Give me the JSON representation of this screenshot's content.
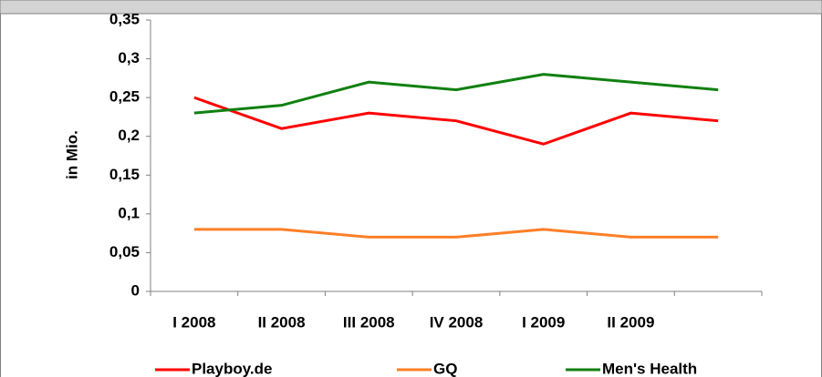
{
  "chart_data": {
    "type": "line",
    "y_label": "in Mio.",
    "categories": [
      "I 2008",
      "II 2008",
      "III 2008",
      "IV 2008",
      "I 2009",
      "II 2009",
      null
    ],
    "series": [
      {
        "name": "Playboy.de",
        "color": "#ff0000",
        "values": [
          0.25,
          0.21,
          0.23,
          0.22,
          0.19,
          0.23,
          0.22
        ]
      },
      {
        "name": "GQ",
        "color": "#ff7f27",
        "values": [
          0.08,
          0.08,
          0.07,
          0.07,
          0.08,
          0.07,
          0.07
        ]
      },
      {
        "name": "Men's Health",
        "color": "#108010",
        "values": [
          0.23,
          0.24,
          0.27,
          0.26,
          0.28,
          0.27,
          0.26
        ]
      }
    ],
    "ylim": [
      0,
      0.35
    ],
    "yticks": [
      0,
      {
        "value": 0.05,
        "label": "0,05"
      },
      {
        "value": 0.1,
        "label": "0,1"
      },
      {
        "value": 0.15,
        "label": "0,15"
      },
      {
        "value": 0.2,
        "label": "0,2"
      },
      {
        "value": 0.25,
        "label": "0,25"
      },
      {
        "value": 0.3,
        "label": "0,3"
      },
      {
        "value": 0.35,
        "label": "0,35"
      }
    ],
    "legend": "bottom"
  }
}
